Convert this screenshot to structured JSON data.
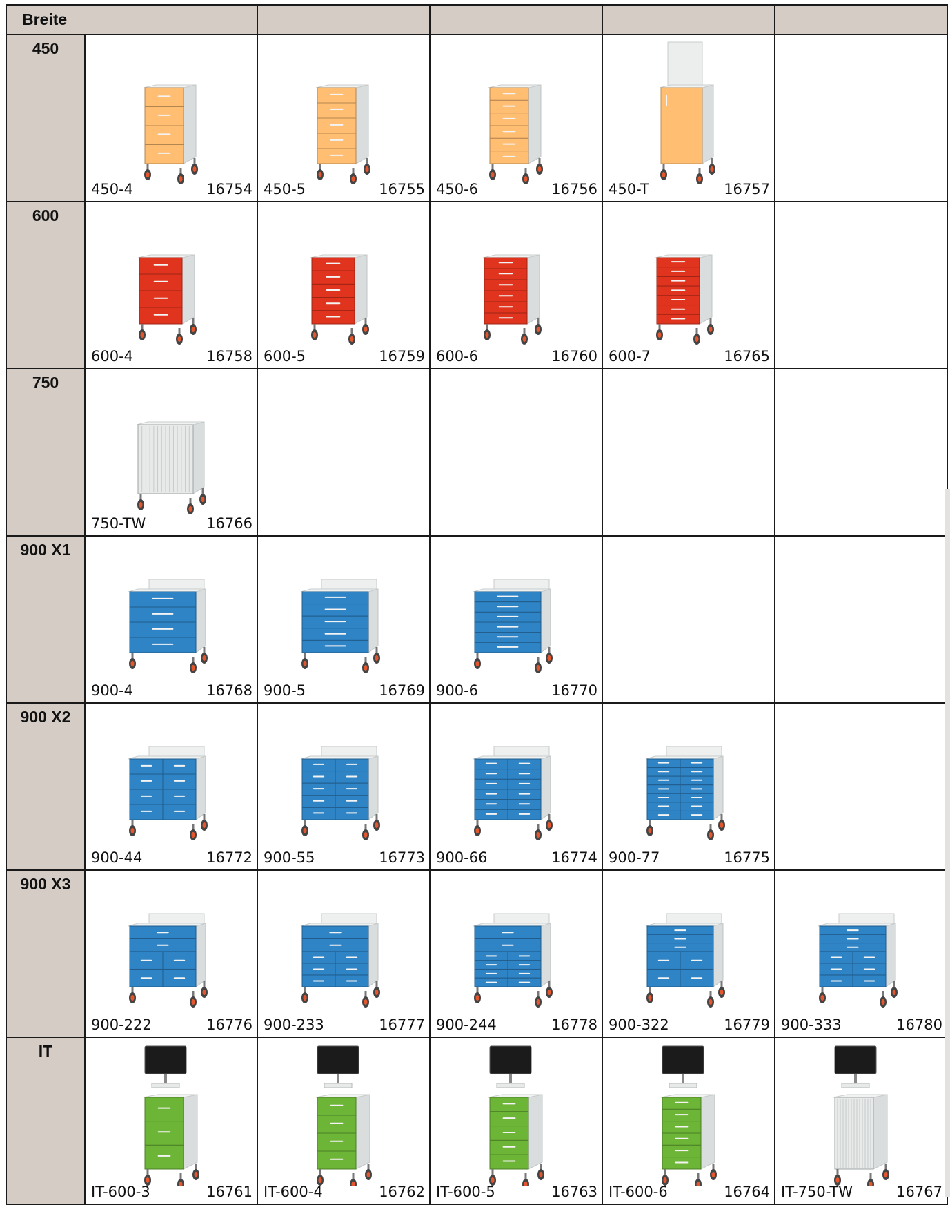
{
  "table": {
    "header": [
      "Breite",
      "",
      "",
      "",
      ""
    ],
    "rows": [
      {
        "label": "450",
        "items": [
          {
            "code": "450-4",
            "number": "16754",
            "type": "drawers",
            "color": "#ffbe72",
            "layout": [
              4
            ]
          },
          {
            "code": "450-5",
            "number": "16755",
            "type": "drawers",
            "color": "#ffbe72",
            "layout": [
              5
            ]
          },
          {
            "code": "450-6",
            "number": "16756",
            "type": "drawers",
            "color": "#ffbe72",
            "layout": [
              6
            ]
          },
          {
            "code": "450-T",
            "number": "16757",
            "type": "door",
            "color": "#ffbe72"
          },
          null
        ]
      },
      {
        "label": "600",
        "items": [
          {
            "code": "600-4",
            "number": "16758",
            "type": "drawers",
            "color": "#e0341e",
            "layout": [
              4
            ]
          },
          {
            "code": "600-5",
            "number": "16759",
            "type": "drawers",
            "color": "#e0341e",
            "layout": [
              5
            ]
          },
          {
            "code": "600-6",
            "number": "16760",
            "type": "drawers",
            "color": "#e0341e",
            "layout": [
              6
            ]
          },
          {
            "code": "600-7",
            "number": "16765",
            "type": "drawers",
            "color": "#e0341e",
            "layout": [
              7
            ]
          },
          null
        ]
      },
      {
        "label": "750",
        "items": [
          {
            "code": "750-TW",
            "number": "16766",
            "type": "tambour",
            "color": "#e8eaea"
          },
          null,
          null,
          null,
          null
        ]
      },
      {
        "label": "900 X1",
        "items": [
          {
            "code": "900-4",
            "number": "16768",
            "type": "drawers",
            "color": "#2f84c6",
            "layout": [
              4
            ]
          },
          {
            "code": "900-5",
            "number": "16769",
            "type": "drawers",
            "color": "#2f84c6",
            "layout": [
              5
            ]
          },
          {
            "code": "900-6",
            "number": "16770",
            "type": "drawers",
            "color": "#2f84c6",
            "layout": [
              6
            ]
          },
          null,
          null
        ]
      },
      {
        "label": "900 X2",
        "items": [
          {
            "code": "900-44",
            "number": "16772",
            "type": "drawers",
            "color": "#2f84c6",
            "layout": [
              4,
              4
            ]
          },
          {
            "code": "900-55",
            "number": "16773",
            "type": "drawers",
            "color": "#2f84c6",
            "layout": [
              5,
              5
            ]
          },
          {
            "code": "900-66",
            "number": "16774",
            "type": "drawers",
            "color": "#2f84c6",
            "layout": [
              6,
              6
            ]
          },
          {
            "code": "900-77",
            "number": "16775",
            "type": "drawers",
            "color": "#2f84c6",
            "layout": [
              7,
              7
            ]
          },
          null
        ]
      },
      {
        "label": "900 X3",
        "items": [
          {
            "code": "900-222",
            "number": "16776",
            "type": "drawers3",
            "color": "#2f84c6",
            "layout": [
              2,
              2,
              2
            ]
          },
          {
            "code": "900-233",
            "number": "16777",
            "type": "drawers3",
            "color": "#2f84c6",
            "layout": [
              2,
              3,
              3
            ]
          },
          {
            "code": "900-244",
            "number": "16778",
            "type": "drawers3",
            "color": "#2f84c6",
            "layout": [
              2,
              4,
              4
            ]
          },
          {
            "code": "900-322",
            "number": "16779",
            "type": "drawers3",
            "color": "#2f84c6",
            "layout": [
              3,
              2,
              2
            ]
          },
          {
            "code": "900-333",
            "number": "16780",
            "type": "drawers3",
            "color": "#2f84c6",
            "layout": [
              3,
              3,
              3
            ]
          }
        ]
      },
      {
        "label": "IT",
        "items": [
          {
            "code": "IT-600-3",
            "number": "16761",
            "type": "it",
            "color": "#6db537",
            "layout": [
              3
            ]
          },
          {
            "code": "IT-600-4",
            "number": "16762",
            "type": "it",
            "color": "#6db537",
            "layout": [
              4
            ]
          },
          {
            "code": "IT-600-5",
            "number": "16763",
            "type": "it",
            "color": "#6db537",
            "layout": [
              5
            ]
          },
          {
            "code": "IT-600-6",
            "number": "16764",
            "type": "it",
            "color": "#6db537",
            "layout": [
              6
            ]
          },
          {
            "code": "IT-750-TW",
            "number": "16767",
            "type": "it-tambour",
            "color": "#e8eaea"
          }
        ]
      }
    ]
  }
}
